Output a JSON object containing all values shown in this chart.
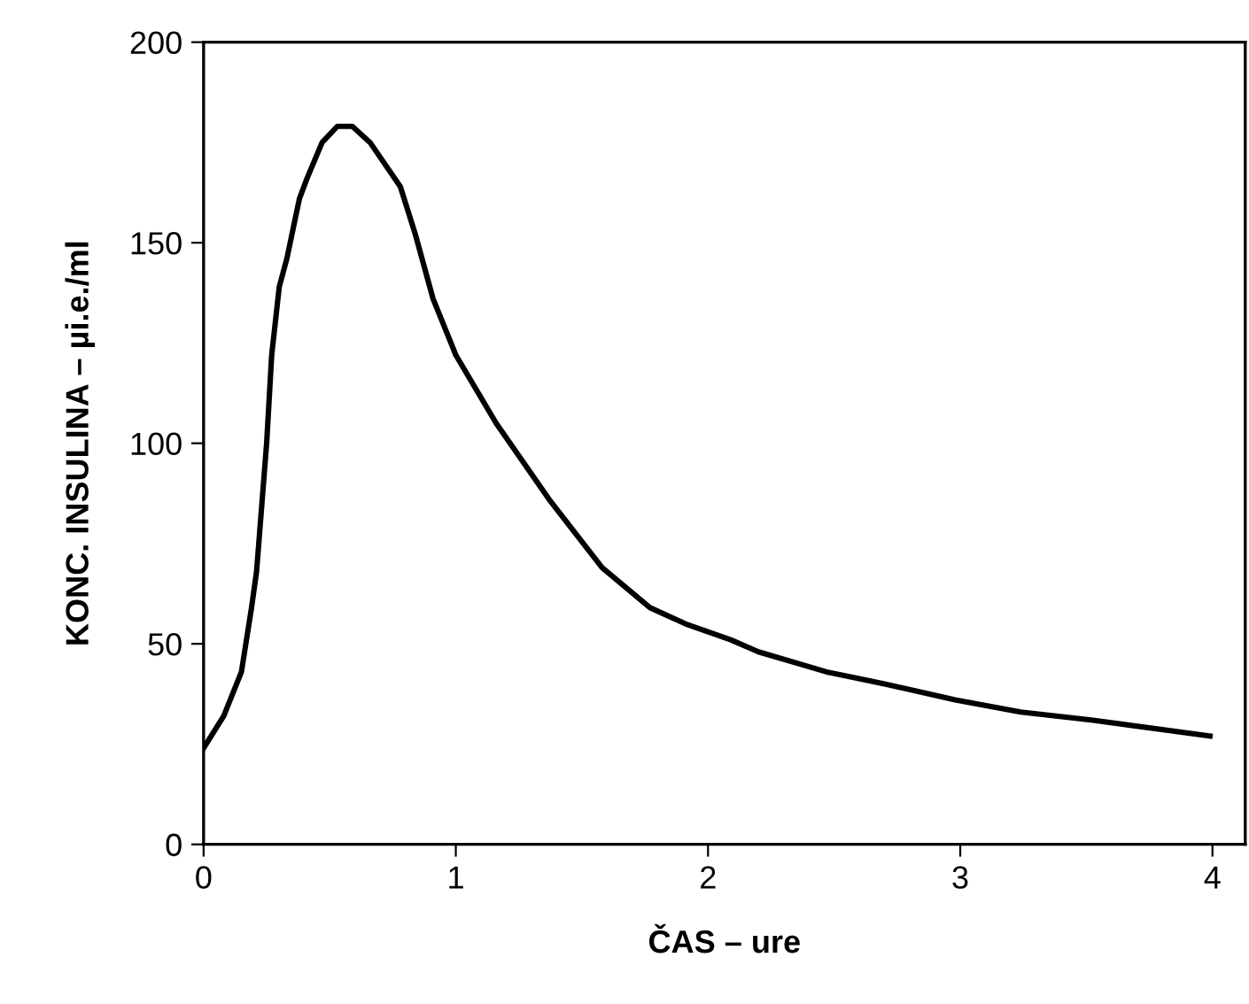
{
  "chart_data": {
    "type": "line",
    "xlabel": "ČAS – ure",
    "ylabel": "KONC. INSULINA – µi.e./ml",
    "xlim": [
      0,
      4.13
    ],
    "ylim": [
      0,
      200
    ],
    "xticks": [
      0,
      1,
      2,
      3,
      4
    ],
    "yticks": [
      0,
      50,
      100,
      150,
      200
    ],
    "grid": false,
    "marker": "none",
    "line_style": "solid",
    "series": [
      {
        "color": "#000000",
        "x": [
          0,
          0.08,
          0.15,
          0.19,
          0.21,
          0.25,
          0.27,
          0.3,
          0.33,
          0.38,
          0.41,
          0.47,
          0.53,
          0.59,
          0.66,
          0.78,
          0.84,
          0.91,
          1.0,
          1.16,
          1.37,
          1.58,
          1.77,
          1.91,
          2.09,
          2.2,
          2.47,
          2.7,
          2.98,
          3.24,
          3.52,
          3.99
        ],
        "values": [
          24,
          32,
          43,
          59,
          68,
          100,
          122,
          139,
          146,
          161,
          166,
          175,
          179,
          179,
          175,
          164,
          152,
          136,
          122,
          105,
          86,
          69,
          59,
          55,
          51,
          48,
          43,
          40,
          36,
          33,
          31,
          27
        ]
      }
    ]
  }
}
